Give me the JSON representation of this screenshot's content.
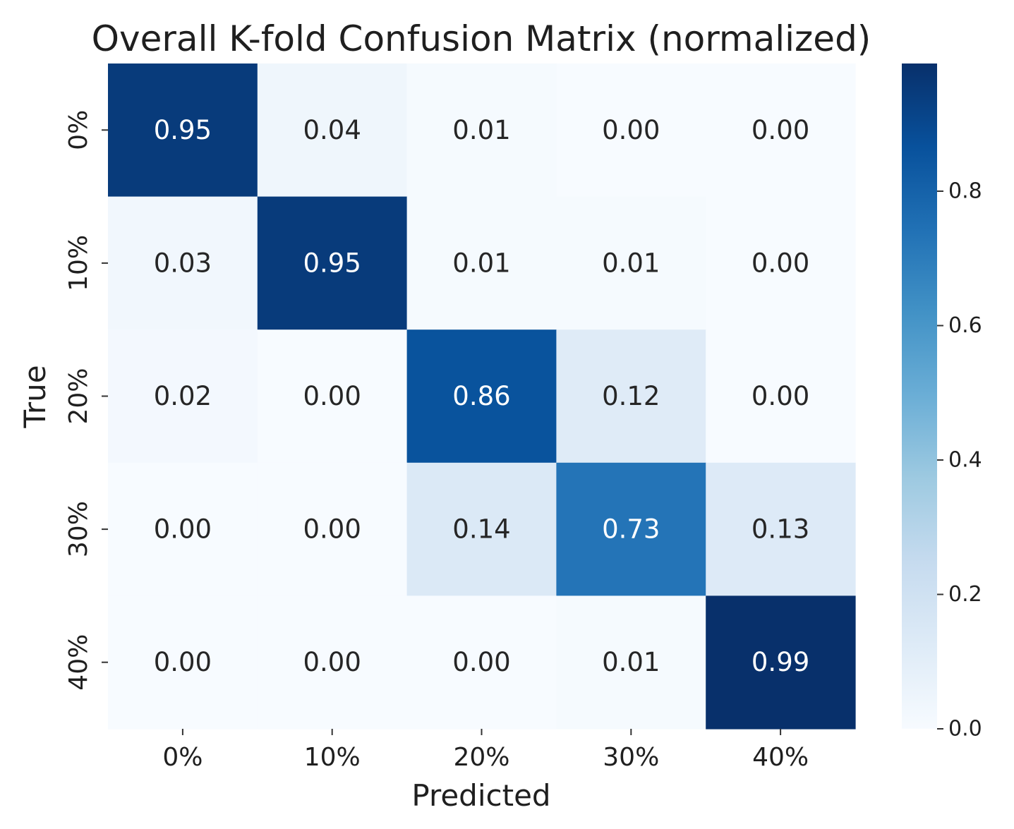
{
  "chart_data": {
    "type": "heatmap",
    "title": "Overall K-fold Confusion Matrix (normalized)",
    "xlabel": "Predicted",
    "ylabel": "True",
    "x_categories": [
      "0%",
      "10%",
      "20%",
      "30%",
      "40%"
    ],
    "y_categories": [
      "0%",
      "10%",
      "20%",
      "30%",
      "40%"
    ],
    "values": [
      [
        0.95,
        0.04,
        0.01,
        0.0,
        0.0
      ],
      [
        0.03,
        0.95,
        0.01,
        0.01,
        0.0
      ],
      [
        0.02,
        0.0,
        0.86,
        0.12,
        0.0
      ],
      [
        0.0,
        0.0,
        0.14,
        0.73,
        0.13
      ],
      [
        0.0,
        0.0,
        0.0,
        0.01,
        0.99
      ]
    ],
    "value_labels": [
      [
        "0.95",
        "0.04",
        "0.01",
        "0.00",
        "0.00"
      ],
      [
        "0.03",
        "0.95",
        "0.01",
        "0.01",
        "0.00"
      ],
      [
        "0.02",
        "0.00",
        "0.86",
        "0.12",
        "0.00"
      ],
      [
        "0.00",
        "0.00",
        "0.14",
        "0.73",
        "0.13"
      ],
      [
        "0.00",
        "0.00",
        "0.00",
        "0.01",
        "0.99"
      ]
    ],
    "colormap": "Blues",
    "colorbar": {
      "range": [
        0.0,
        0.99
      ],
      "ticks": [
        0.0,
        0.2,
        0.4,
        0.6,
        0.8
      ],
      "tick_labels": [
        "0.0",
        "0.2",
        "0.4",
        "0.6",
        "0.8"
      ]
    }
  }
}
